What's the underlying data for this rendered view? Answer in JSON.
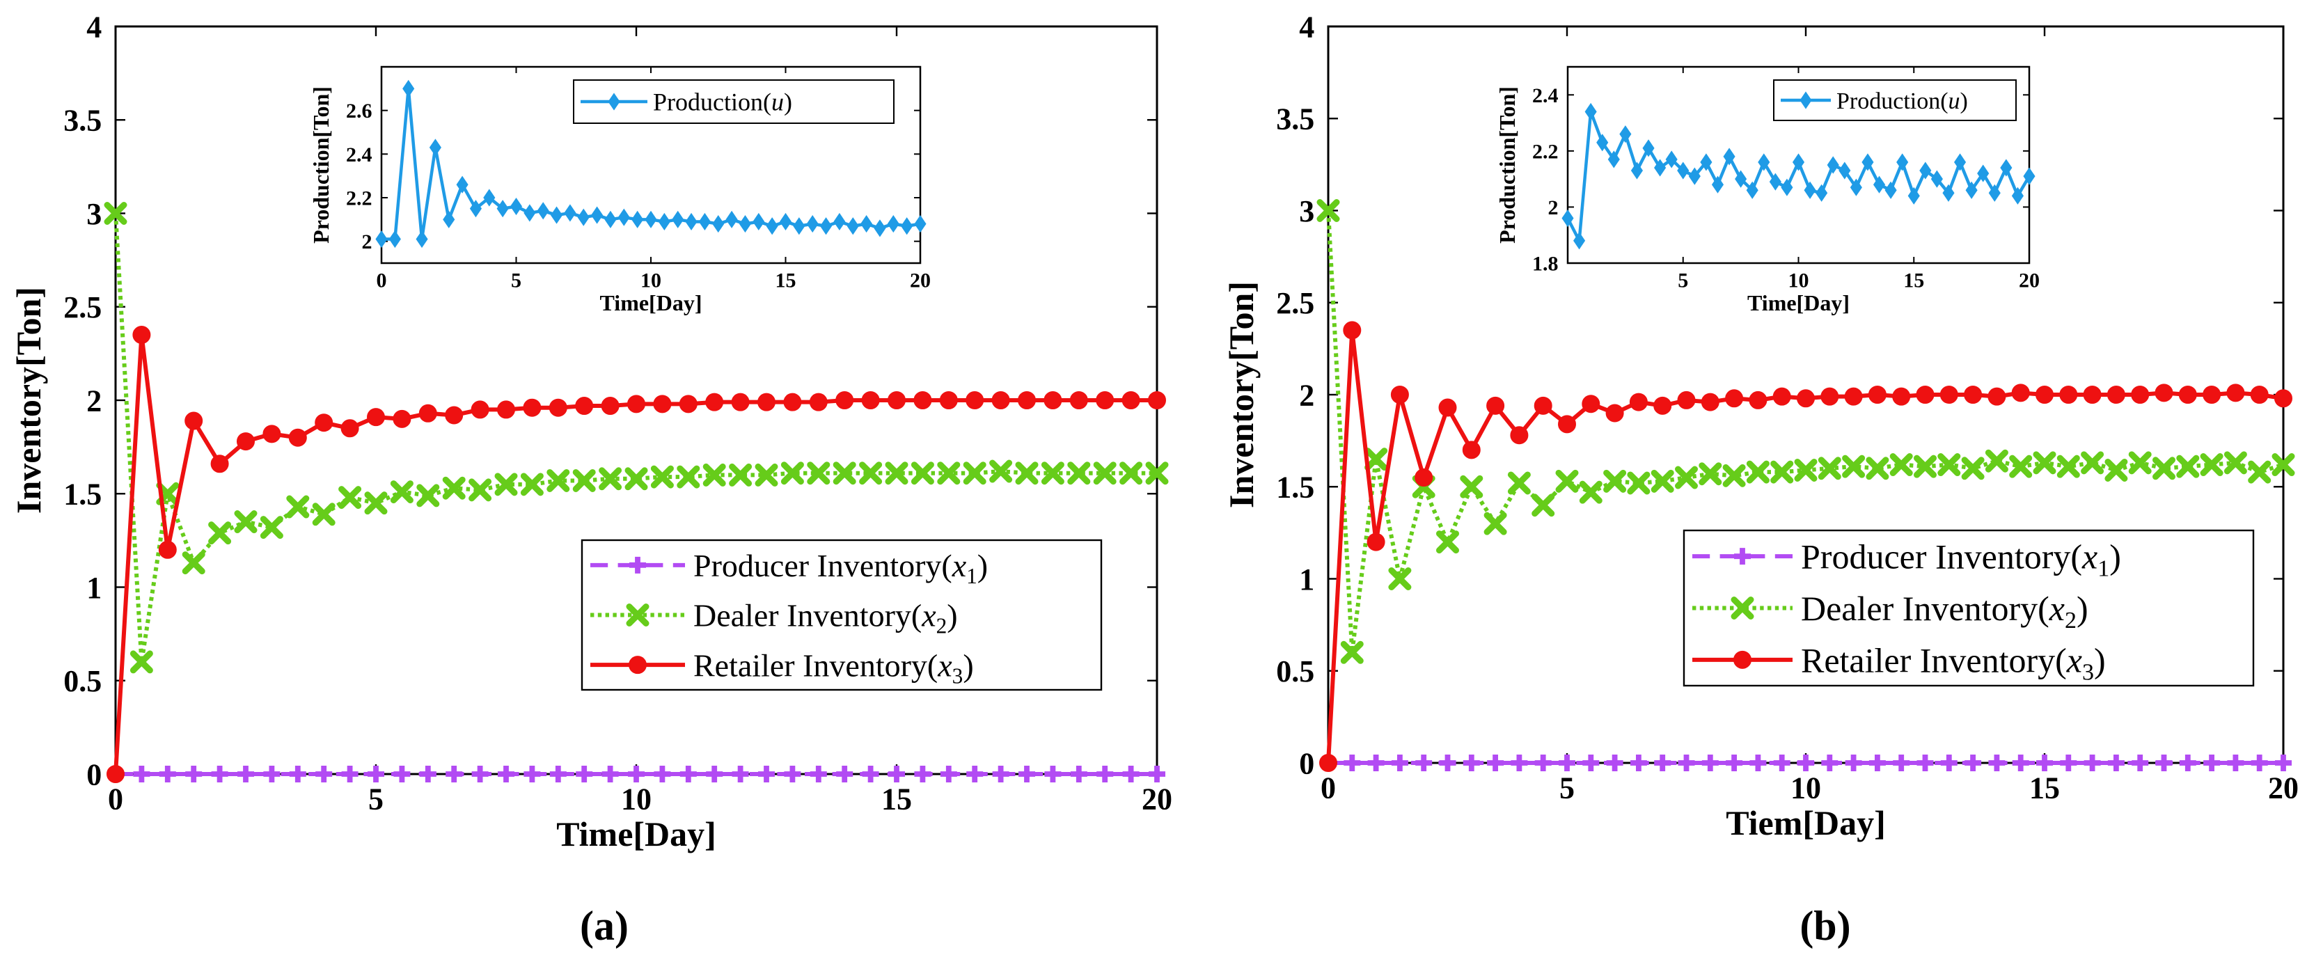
{
  "chart_data": [
    {
      "type": "line",
      "panel_label": "(a)",
      "xlabel": "Time[Day]",
      "ylabel": "Inventory[Ton]",
      "xlim": [
        0,
        20
      ],
      "ylim": [
        0,
        4
      ],
      "xticks": [
        "0",
        "5",
        "10",
        "15",
        "20"
      ],
      "yticks": [
        "0",
        "0.5",
        "1",
        "1.5",
        "2",
        "2.5",
        "3",
        "3.5",
        "4"
      ],
      "legend_position": "right",
      "x": [
        0,
        0.5,
        1,
        1.5,
        2,
        2.5,
        3,
        3.5,
        4,
        4.5,
        5,
        5.5,
        6,
        6.5,
        7,
        7.5,
        8,
        8.5,
        9,
        9.5,
        10,
        10.5,
        11,
        11.5,
        12,
        12.5,
        13,
        13.5,
        14,
        14.5,
        15,
        15.5,
        16,
        16.5,
        17,
        17.5,
        18,
        18.5,
        19,
        19.5,
        20
      ],
      "series": [
        {
          "name": "Producer Inventory",
          "sub": "1",
          "color": "#b24bf3",
          "style": "dashed",
          "marker": "plus",
          "values": [
            0,
            0,
            0,
            0,
            0,
            0,
            0,
            0,
            0,
            0,
            0,
            0,
            0,
            0,
            0,
            0,
            0,
            0,
            0,
            0,
            0,
            0,
            0,
            0,
            0,
            0,
            0,
            0,
            0,
            0,
            0,
            0,
            0,
            0,
            0,
            0,
            0,
            0,
            0,
            0,
            0
          ]
        },
        {
          "name": "Dealer Inventory",
          "sub": "2",
          "color": "#66cc1a",
          "style": "dotted",
          "marker": "x",
          "values": [
            3,
            0.6,
            1.5,
            1.13,
            1.29,
            1.35,
            1.32,
            1.43,
            1.39,
            1.48,
            1.45,
            1.51,
            1.49,
            1.53,
            1.52,
            1.55,
            1.55,
            1.57,
            1.57,
            1.58,
            1.58,
            1.59,
            1.59,
            1.6,
            1.6,
            1.6,
            1.61,
            1.61,
            1.61,
            1.61,
            1.61,
            1.61,
            1.61,
            1.61,
            1.62,
            1.61,
            1.61,
            1.61,
            1.61,
            1.61,
            1.61
          ]
        },
        {
          "name": "Retailer Inventory",
          "sub": "3",
          "color": "#ee1111",
          "style": "solid",
          "marker": "circle",
          "values": [
            0,
            2.35,
            1.2,
            1.89,
            1.66,
            1.78,
            1.82,
            1.8,
            1.88,
            1.85,
            1.91,
            1.9,
            1.93,
            1.92,
            1.95,
            1.95,
            1.96,
            1.96,
            1.97,
            1.97,
            1.98,
            1.98,
            1.98,
            1.99,
            1.99,
            1.99,
            1.99,
            1.99,
            2,
            2,
            2,
            2,
            2,
            2,
            2,
            2,
            2,
            2,
            2,
            2,
            2
          ]
        }
      ],
      "inset": {
        "type": "line",
        "xlabel": "Time[Day]",
        "ylabel": "Production[Ton]",
        "xlim": [
          0,
          20
        ],
        "ylim": [
          1.9,
          2.8
        ],
        "xticks": [
          "0",
          "5",
          "10",
          "15",
          "20"
        ],
        "yticks": [
          "2",
          "2.2",
          "2.4",
          "2.6"
        ],
        "legend_position": "top-right",
        "x": [
          0,
          0.5,
          1,
          1.5,
          2,
          2.5,
          3,
          3.5,
          4,
          4.5,
          5,
          5.5,
          6,
          6.5,
          7,
          7.5,
          8,
          8.5,
          9,
          9.5,
          10,
          10.5,
          11,
          11.5,
          12,
          12.5,
          13,
          13.5,
          14,
          14.5,
          15,
          15.5,
          16,
          16.5,
          17,
          17.5,
          18,
          18.5,
          19,
          19.5,
          20
        ],
        "series": [
          {
            "name": "Production",
            "sub": "u",
            "color": "#1f9be6",
            "style": "solid",
            "marker": "diamond",
            "values": [
              2.01,
              2.01,
              2.7,
              2.01,
              2.43,
              2.1,
              2.26,
              2.15,
              2.2,
              2.15,
              2.16,
              2.13,
              2.14,
              2.12,
              2.13,
              2.11,
              2.12,
              2.1,
              2.11,
              2.1,
              2.1,
              2.09,
              2.1,
              2.09,
              2.09,
              2.08,
              2.1,
              2.08,
              2.09,
              2.07,
              2.09,
              2.07,
              2.08,
              2.07,
              2.09,
              2.07,
              2.08,
              2.06,
              2.08,
              2.07,
              2.08
            ]
          }
        ]
      }
    },
    {
      "type": "line",
      "panel_label": "(b)",
      "xlabel": "Tiem[Day]",
      "ylabel": "Inventory[Ton]",
      "xlim": [
        0,
        20
      ],
      "ylim": [
        0,
        4
      ],
      "xticks": [
        "0",
        "5",
        "10",
        "15",
        "20"
      ],
      "yticks": [
        "0",
        "0.5",
        "1",
        "1.5",
        "2",
        "2.5",
        "3",
        "3.5",
        "4"
      ],
      "legend_position": "right",
      "x": [
        0,
        0.5,
        1,
        1.5,
        2,
        2.5,
        3,
        3.5,
        4,
        4.5,
        5,
        5.5,
        6,
        6.5,
        7,
        7.5,
        8,
        8.5,
        9,
        9.5,
        10,
        10.5,
        11,
        11.5,
        12,
        12.5,
        13,
        13.5,
        14,
        14.5,
        15,
        15.5,
        16,
        16.5,
        17,
        17.5,
        18,
        18.5,
        19,
        19.5,
        20
      ],
      "series": [
        {
          "name": "Producer Inventory",
          "sub": "1",
          "color": "#b24bf3",
          "style": "dashed",
          "marker": "plus",
          "values": [
            0,
            0,
            0,
            0,
            0,
            0,
            0,
            0,
            0,
            0,
            0,
            0,
            0,
            0,
            0,
            0,
            0,
            0,
            0,
            0,
            0,
            0,
            0,
            0,
            0,
            0,
            0,
            0,
            0,
            0,
            0,
            0,
            0,
            0,
            0,
            0,
            0,
            0,
            0,
            0,
            0
          ]
        },
        {
          "name": "Dealer Inventory",
          "sub": "2",
          "color": "#66cc1a",
          "style": "dotted",
          "marker": "x",
          "values": [
            3,
            0.6,
            1.65,
            1,
            1.5,
            1.2,
            1.5,
            1.3,
            1.52,
            1.4,
            1.53,
            1.47,
            1.53,
            1.52,
            1.53,
            1.55,
            1.57,
            1.56,
            1.58,
            1.58,
            1.59,
            1.6,
            1.61,
            1.6,
            1.62,
            1.61,
            1.62,
            1.6,
            1.64,
            1.61,
            1.63,
            1.61,
            1.63,
            1.59,
            1.63,
            1.6,
            1.61,
            1.62,
            1.63,
            1.58,
            1.62
          ]
        },
        {
          "name": "Retailer Inventory",
          "sub": "3",
          "color": "#ee1111",
          "style": "solid",
          "marker": "circle",
          "values": [
            0,
            2.35,
            1.2,
            2,
            1.55,
            1.93,
            1.7,
            1.94,
            1.78,
            1.94,
            1.84,
            1.95,
            1.9,
            1.96,
            1.94,
            1.97,
            1.96,
            1.98,
            1.97,
            1.99,
            1.98,
            1.99,
            1.99,
            2,
            1.99,
            2,
            2,
            2,
            1.99,
            2.01,
            2,
            2,
            2,
            2,
            2,
            2.01,
            2,
            2,
            2.01,
            2,
            1.98
          ]
        }
      ],
      "inset": {
        "type": "line",
        "xlabel": "Time[Day]",
        "ylabel": "Production[Ton]",
        "xlim": [
          0,
          20
        ],
        "ylim": [
          1.8,
          2.5
        ],
        "xticks": [
          "5",
          "10",
          "15",
          "20"
        ],
        "yticks": [
          "1.8",
          "2",
          "2.2",
          "2.4"
        ],
        "legend_position": "top-right",
        "x": [
          0,
          0.5,
          1,
          1.5,
          2,
          2.5,
          3,
          3.5,
          4,
          4.5,
          5,
          5.5,
          6,
          6.5,
          7,
          7.5,
          8,
          8.5,
          9,
          9.5,
          10,
          10.5,
          11,
          11.5,
          12,
          12.5,
          13,
          13.5,
          14,
          14.5,
          15,
          15.5,
          16,
          16.5,
          17,
          17.5,
          18,
          18.5,
          19,
          19.5,
          20
        ],
        "series": [
          {
            "name": "Production",
            "sub": "u",
            "color": "#1f9be6",
            "style": "solid",
            "marker": "diamond",
            "values": [
              1.96,
              1.88,
              2.34,
              2.23,
              2.17,
              2.26,
              2.13,
              2.21,
              2.14,
              2.17,
              2.13,
              2.11,
              2.16,
              2.08,
              2.18,
              2.1,
              2.06,
              2.16,
              2.09,
              2.07,
              2.16,
              2.06,
              2.05,
              2.15,
              2.13,
              2.07,
              2.16,
              2.08,
              2.06,
              2.16,
              2.04,
              2.13,
              2.1,
              2.05,
              2.16,
              2.06,
              2.12,
              2.05,
              2.14,
              2.04,
              2.11
            ]
          }
        ]
      }
    }
  ]
}
